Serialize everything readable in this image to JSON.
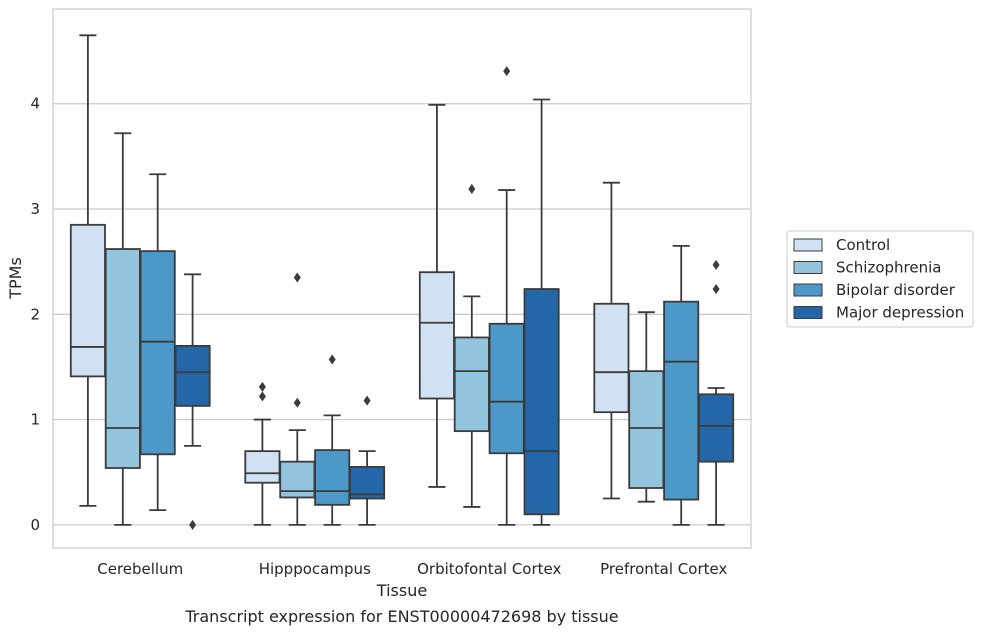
{
  "chart_data": {
    "type": "box",
    "xlabel": "Tissue",
    "ylabel": "TPMs",
    "caption": "Transcript expression for ENST00000472698 by tissue",
    "ylim": [
      -0.22,
      4.9
    ],
    "yticks": [
      "0",
      "1",
      "2",
      "3",
      "4"
    ],
    "grid": "horizontal",
    "legend_position": "right",
    "categories": [
      "Cerebellum",
      "Hipppocampus",
      "Orbitofontal Cortex",
      "Prefrontal Cortex"
    ],
    "series": [
      {
        "name": "Control",
        "color": "#cfe1f2",
        "boxes": [
          {
            "whislo": 0.18,
            "q1": 1.41,
            "med": 1.69,
            "q3": 2.85,
            "whishi": 4.65,
            "fliers": []
          },
          {
            "whislo": 0.0,
            "q1": 0.4,
            "med": 0.49,
            "q3": 0.7,
            "whishi": 1.0,
            "fliers": [
              1.22,
              1.31
            ]
          },
          {
            "whislo": 0.36,
            "q1": 1.2,
            "med": 1.92,
            "q3": 2.4,
            "whishi": 3.99,
            "fliers": []
          },
          {
            "whislo": 0.25,
            "q1": 1.07,
            "med": 1.45,
            "q3": 2.1,
            "whishi": 3.25,
            "fliers": []
          }
        ]
      },
      {
        "name": "Schizophrenia",
        "color": "#93c4de",
        "boxes": [
          {
            "whislo": 0.0,
            "q1": 0.54,
            "med": 0.92,
            "q3": 2.62,
            "whishi": 3.72,
            "fliers": []
          },
          {
            "whislo": 0.0,
            "q1": 0.26,
            "med": 0.32,
            "q3": 0.6,
            "whishi": 0.9,
            "fliers": [
              1.16,
              2.35
            ]
          },
          {
            "whislo": 0.17,
            "q1": 0.89,
            "med": 1.46,
            "q3": 1.78,
            "whishi": 2.17,
            "fliers": [
              3.19
            ]
          },
          {
            "whislo": 0.22,
            "q1": 0.35,
            "med": 0.92,
            "q3": 1.46,
            "whishi": 2.02,
            "fliers": []
          }
        ]
      },
      {
        "name": "Bipolar disorder",
        "color": "#4b98c9",
        "boxes": [
          {
            "whislo": 0.14,
            "q1": 0.67,
            "med": 1.74,
            "q3": 2.6,
            "whishi": 3.33,
            "fliers": []
          },
          {
            "whislo": 0.0,
            "q1": 0.19,
            "med": 0.32,
            "q3": 0.71,
            "whishi": 1.04,
            "fliers": [
              1.57
            ]
          },
          {
            "whislo": 0.0,
            "q1": 0.68,
            "med": 1.17,
            "q3": 1.91,
            "whishi": 3.18,
            "fliers": [
              4.31
            ]
          },
          {
            "whislo": 0.0,
            "q1": 0.24,
            "med": 1.55,
            "q3": 2.12,
            "whishi": 2.65,
            "fliers": []
          }
        ]
      },
      {
        "name": "Major depression",
        "color": "#2467a8",
        "boxes": [
          {
            "whislo": 0.75,
            "q1": 1.13,
            "med": 1.45,
            "q3": 1.7,
            "whishi": 2.38,
            "fliers": [
              0.0
            ]
          },
          {
            "whislo": 0.0,
            "q1": 0.25,
            "med": 0.29,
            "q3": 0.55,
            "whishi": 0.7,
            "fliers": [
              1.18
            ]
          },
          {
            "whislo": 0.0,
            "q1": 0.1,
            "med": 0.7,
            "q3": 2.24,
            "whishi": 4.04,
            "fliers": []
          },
          {
            "whislo": 0.0,
            "q1": 0.6,
            "med": 0.94,
            "q3": 1.24,
            "whishi": 1.3,
            "fliers": [
              2.24,
              2.47
            ]
          }
        ]
      }
    ]
  }
}
